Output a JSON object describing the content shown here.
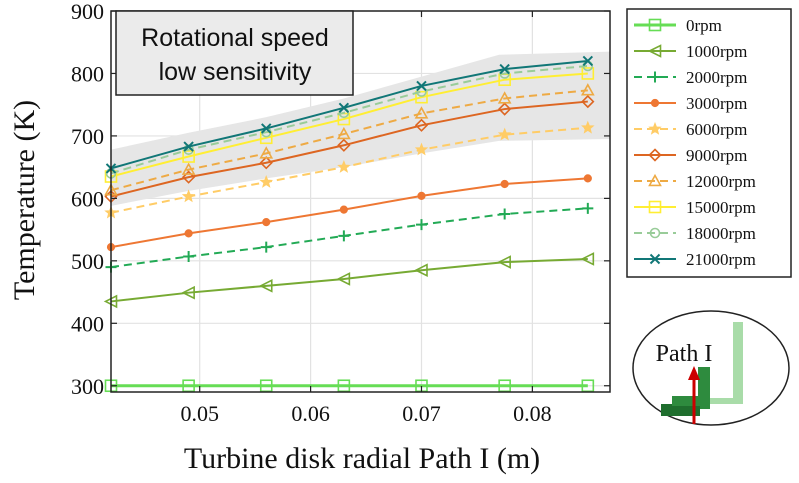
{
  "chart_data": {
    "type": "line",
    "xlabel": "Turbine disk radial Path I (m)",
    "ylabel": "Temperature (K)",
    "xlim": [
      0.042,
      0.087
    ],
    "ylim": [
      290,
      900
    ],
    "xticks": [
      0.05,
      0.06,
      0.07,
      0.08
    ],
    "xtick_labels": [
      "0.05",
      "0.06",
      "0.07",
      "0.08"
    ],
    "yticks": [
      300,
      400,
      500,
      600,
      700,
      800,
      900
    ],
    "ytick_labels": [
      "300",
      "400",
      "500",
      "600",
      "700",
      "800",
      "900"
    ],
    "grid": true,
    "legend_position": "outside-right",
    "annotation": [
      "Rotational speed",
      "low sensitivity"
    ],
    "inset_label": "Path I",
    "band": {
      "color": "#e6e6e6",
      "lower": [
        [
          0.042,
          588
        ],
        [
          0.049,
          612
        ],
        [
          0.056,
          632
        ],
        [
          0.063,
          650
        ],
        [
          0.07,
          672
        ],
        [
          0.077,
          692
        ],
        [
          0.087,
          695
        ]
      ],
      "upper": [
        [
          0.042,
          678
        ],
        [
          0.049,
          705
        ],
        [
          0.056,
          730
        ],
        [
          0.063,
          760
        ],
        [
          0.07,
          795
        ],
        [
          0.077,
          830
        ],
        [
          0.087,
          835
        ]
      ]
    },
    "x": [
      0.042,
      0.049,
      0.056,
      0.063,
      0.07,
      0.0775,
      0.085
    ],
    "series": [
      {
        "name": "0rpm",
        "values": [
          300,
          300,
          300,
          300,
          300,
          300,
          300
        ],
        "color": "#66dd55",
        "dash": "",
        "marker": "square"
      },
      {
        "name": "1000rpm",
        "values": [
          435,
          449,
          460,
          471,
          485,
          498,
          503
        ],
        "color": "#77aa33",
        "dash": "",
        "marker": "triangle-left"
      },
      {
        "name": "2000rpm",
        "values": [
          490,
          507,
          522,
          540,
          558,
          575,
          584
        ],
        "color": "#22aa55",
        "dash": "8,5",
        "marker": "plus"
      },
      {
        "name": "3000rpm",
        "values": [
          522,
          544,
          562,
          582,
          604,
          623,
          632
        ],
        "color": "#ee7733",
        "dash": "",
        "marker": "circle-filled"
      },
      {
        "name": "6000rpm",
        "values": [
          577,
          603,
          626,
          650,
          678,
          702,
          713
        ],
        "color": "#ffcc66",
        "dash": "8,5",
        "marker": "star"
      },
      {
        "name": "9000rpm",
        "values": [
          603,
          634,
          657,
          685,
          717,
          743,
          755
        ],
        "color": "#dd6622",
        "dash": "",
        "marker": "diamond"
      },
      {
        "name": "12000rpm",
        "values": [
          613,
          646,
          672,
          703,
          736,
          760,
          773
        ],
        "color": "#eeaa44",
        "dash": "8,5",
        "marker": "triangle"
      },
      {
        "name": "15000rpm",
        "values": [
          635,
          667,
          697,
          727,
          762,
          790,
          800
        ],
        "color": "#ffee33",
        "dash": "",
        "marker": "square"
      },
      {
        "name": "18000rpm",
        "values": [
          640,
          678,
          706,
          737,
          771,
          800,
          812
        ],
        "color": "#99cc99",
        "dash": "8,5",
        "marker": "circle"
      },
      {
        "name": "21000rpm",
        "values": [
          648,
          683,
          712,
          745,
          780,
          807,
          820
        ],
        "color": "#117777",
        "dash": "",
        "marker": "x"
      }
    ]
  }
}
